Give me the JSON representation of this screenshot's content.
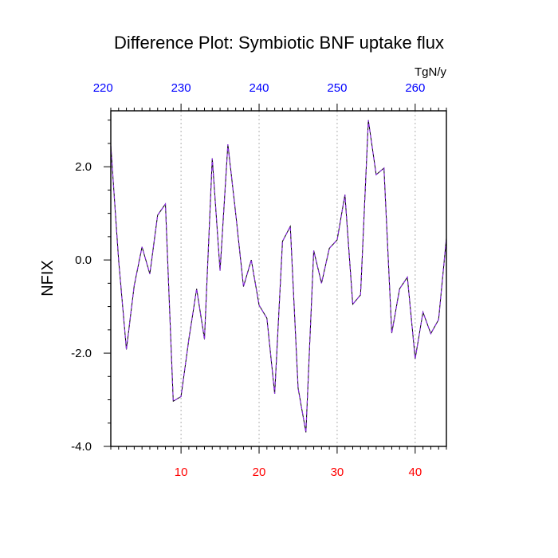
{
  "chart_data": {
    "type": "line",
    "title": "Difference Plot: Symbiotic BNF uptake flux",
    "units": "TgN/y",
    "ylabel": "NFIX",
    "xlabel": "",
    "xlim": [
      1,
      44
    ],
    "ylim": [
      -4.0,
      3.2
    ],
    "x_ticks": [
      10,
      20,
      30,
      40
    ],
    "x_tick_labels": [
      "10",
      "20",
      "30",
      "40"
    ],
    "top_ticks": [
      219,
      229,
      239,
      249,
      259
    ],
    "top_tick_labels": [
      "220",
      "230",
      "240",
      "250",
      "260"
    ],
    "y_ticks": [
      2.0,
      0.0,
      -2.0,
      -4.0
    ],
    "y_tick_labels": [
      "2.0",
      "0.0",
      "-2.0",
      "-4.0"
    ],
    "grid": "vertical dotted at bottom x ticks",
    "colors": {
      "line_solid": "#000000",
      "line_dashed": "#8a2be2",
      "bottom_tick_labels": "#ff0000",
      "top_tick_labels": "#0000ff",
      "grid": "#b0b0b0"
    },
    "series": [
      {
        "x": [
          1,
          2,
          3,
          4,
          5,
          6,
          7,
          8,
          9,
          10,
          11,
          12,
          13,
          14,
          15,
          16,
          17,
          18,
          19,
          20,
          21,
          22,
          23,
          24,
          25,
          26,
          27,
          28,
          29,
          30,
          31,
          32,
          33,
          34,
          35,
          36,
          37,
          38,
          39,
          40,
          41,
          42,
          43,
          44
        ],
        "values": [
          2.45,
          0.0,
          -1.92,
          -0.55,
          0.28,
          -0.3,
          0.96,
          1.2,
          -3.03,
          -2.93,
          -1.7,
          -0.62,
          -1.7,
          2.18,
          -0.23,
          2.48,
          1.0,
          -0.57,
          0.0,
          -0.97,
          -1.25,
          -2.87,
          0.4,
          0.72,
          -2.75,
          -3.7,
          0.2,
          -0.5,
          0.25,
          0.43,
          1.4,
          -0.95,
          -0.75,
          3.0,
          1.83,
          1.97,
          -1.57,
          -0.62,
          -0.37,
          -2.12,
          -1.12,
          -1.58,
          -1.28,
          0.47
        ]
      }
    ]
  }
}
